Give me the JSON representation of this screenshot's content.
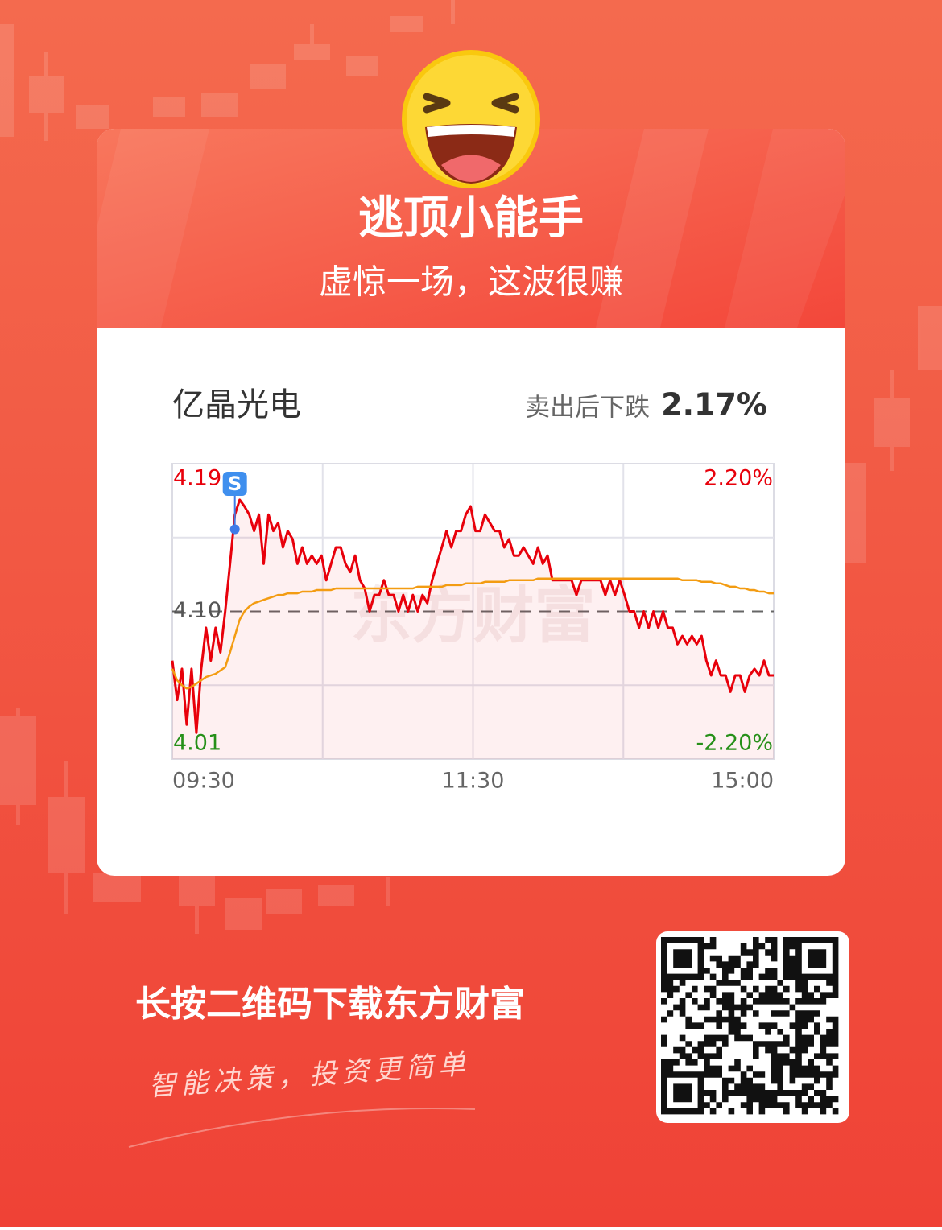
{
  "header": {
    "title": "逃顶小能手",
    "subtitle": "虚惊一场，这波很赚"
  },
  "card": {
    "stock_name": "亿晶光电",
    "change_label": "卖出后下跌",
    "change_value": "2.17%"
  },
  "chart_data": {
    "type": "line",
    "watermark": "东方财富",
    "xticks": [
      "09:30",
      "11:30",
      "15:00"
    ],
    "ylim": [
      4.01,
      4.19
    ],
    "yticks": [
      4.19,
      {
        "value": 4.1,
        "label": "4.10"
      },
      4.01
    ],
    "y2lim": [
      -2.2,
      2.2
    ],
    "y2ticks": [
      {
        "value": 2.2,
        "label": "2.20%"
      },
      {
        "value": -2.2,
        "label": "-2.20%"
      }
    ],
    "grid": true,
    "annotation": {
      "label": "S",
      "x": 13,
      "value": 4.15
    },
    "series": [
      {
        "color": "#e8000b",
        "values": [
          4.07,
          4.046,
          4.065,
          4.031,
          4.065,
          4.026,
          4.065,
          4.09,
          4.07,
          4.09,
          4.075,
          4.1,
          4.129,
          4.159,
          4.168,
          4.164,
          4.159,
          4.149,
          4.159,
          4.129,
          4.159,
          4.149,
          4.154,
          4.139,
          4.149,
          4.144,
          4.129,
          4.139,
          4.129,
          4.134,
          4.129,
          4.134,
          4.119,
          4.129,
          4.139,
          4.139,
          4.129,
          4.124,
          4.134,
          4.119,
          4.114,
          4.1,
          4.11,
          4.11,
          4.119,
          4.11,
          4.11,
          4.1,
          4.11,
          4.1,
          4.11,
          4.1,
          4.11,
          4.105,
          4.119,
          4.129,
          4.139,
          4.149,
          4.139,
          4.149,
          4.149,
          4.159,
          4.164,
          4.149,
          4.149,
          4.159,
          4.154,
          4.149,
          4.149,
          4.139,
          4.144,
          4.134,
          4.134,
          4.139,
          4.134,
          4.129,
          4.139,
          4.129,
          4.134,
          4.119,
          4.119,
          4.119,
          4.119,
          4.119,
          4.11,
          4.119,
          4.119,
          4.119,
          4.119,
          4.119,
          4.11,
          4.119,
          4.11,
          4.119,
          4.11,
          4.1,
          4.1,
          4.09,
          4.1,
          4.09,
          4.1,
          4.09,
          4.1,
          4.09,
          4.09,
          4.08,
          4.085,
          4.08,
          4.085,
          4.08,
          4.085,
          4.07,
          4.061,
          4.07,
          4.061,
          4.061,
          4.051,
          4.061,
          4.061,
          4.051,
          4.061,
          4.065,
          4.061,
          4.07,
          4.061,
          4.061
        ]
      },
      {
        "color": "#f39c12",
        "values": [
          4.065,
          4.058,
          4.055,
          4.053,
          4.054,
          4.056,
          4.058,
          4.06,
          4.061,
          4.062,
          4.064,
          4.066,
          4.075,
          4.085,
          4.095,
          4.1,
          4.103,
          4.105,
          4.106,
          4.107,
          4.108,
          4.109,
          4.11,
          4.11,
          4.111,
          4.111,
          4.111,
          4.112,
          4.112,
          4.112,
          4.113,
          4.113,
          4.113,
          4.113,
          4.114,
          4.114,
          4.114,
          4.114,
          4.114,
          4.114,
          4.114,
          4.114,
          4.114,
          4.114,
          4.114,
          4.114,
          4.114,
          4.114,
          4.114,
          4.114,
          4.114,
          4.115,
          4.115,
          4.115,
          4.115,
          4.115,
          4.115,
          4.116,
          4.116,
          4.116,
          4.116,
          4.117,
          4.117,
          4.117,
          4.117,
          4.118,
          4.118,
          4.118,
          4.118,
          4.118,
          4.119,
          4.119,
          4.119,
          4.119,
          4.119,
          4.119,
          4.12,
          4.12,
          4.12,
          4.12,
          4.12,
          4.12,
          4.12,
          4.12,
          4.12,
          4.12,
          4.12,
          4.12,
          4.12,
          4.12,
          4.12,
          4.12,
          4.12,
          4.12,
          4.12,
          4.12,
          4.12,
          4.12,
          4.12,
          4.12,
          4.12,
          4.12,
          4.12,
          4.12,
          4.12,
          4.12,
          4.119,
          4.119,
          4.119,
          4.119,
          4.118,
          4.118,
          4.118,
          4.117,
          4.117,
          4.116,
          4.115,
          4.115,
          4.114,
          4.114,
          4.113,
          4.113,
          4.112,
          4.112,
          4.111,
          4.111
        ]
      }
    ]
  },
  "footer": {
    "cta": "长按二维码下载东方财富",
    "slogan": "智能决策，投资更简单"
  }
}
